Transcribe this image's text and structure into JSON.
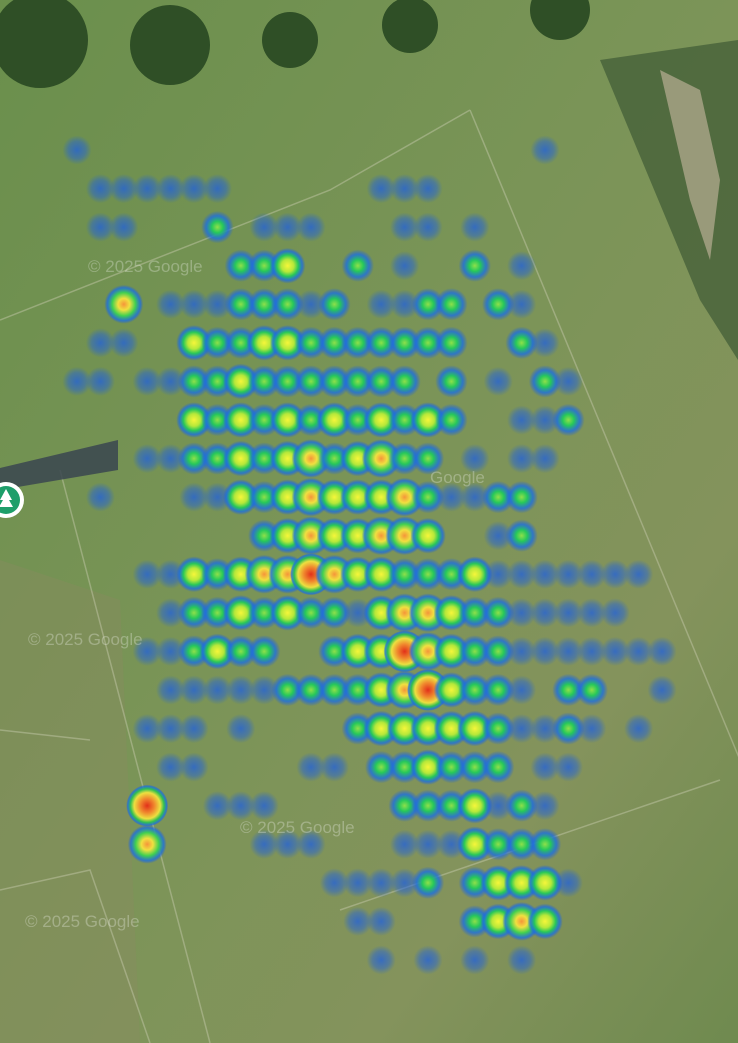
{
  "map": {
    "watermarks": [
      "© 2025 Google",
      "© 2025 Google",
      "© 2025 Google",
      "© 2025 Google",
      "Google"
    ],
    "heatmap": {
      "rows": [
        [
          1,
          0,
          0,
          0,
          0,
          0,
          0,
          0,
          0,
          0,
          0,
          0,
          0,
          0,
          0,
          0,
          0,
          0,
          0,
          0,
          1,
          0,
          0,
          0,
          0,
          0
        ],
        [
          0,
          1,
          1,
          1,
          1,
          1,
          1,
          0,
          0,
          0,
          0,
          0,
          0,
          1,
          1,
          1,
          0,
          0,
          0,
          0,
          0,
          0,
          0,
          0,
          0,
          0
        ],
        [
          0,
          1,
          1,
          0,
          0,
          0,
          2,
          0,
          1,
          1,
          1,
          0,
          0,
          0,
          1,
          1,
          0,
          1,
          0,
          0,
          0,
          0,
          0,
          0,
          0,
          0
        ],
        [
          0,
          0,
          0,
          0,
          0,
          0,
          0,
          2,
          2,
          3,
          0,
          0,
          2,
          0,
          1,
          0,
          0,
          2,
          0,
          1,
          0,
          0,
          0,
          0,
          0,
          0
        ],
        [
          0,
          0,
          4,
          0,
          1,
          1,
          1,
          2,
          2,
          2,
          1,
          2,
          0,
          1,
          1,
          2,
          2,
          0,
          2,
          1,
          0,
          0,
          0,
          0,
          0,
          0
        ],
        [
          0,
          1,
          1,
          0,
          0,
          3,
          2,
          2,
          3,
          3,
          2,
          2,
          2,
          2,
          2,
          2,
          2,
          0,
          0,
          2,
          1,
          0,
          0,
          0,
          0,
          0
        ],
        [
          1,
          1,
          0,
          1,
          1,
          2,
          2,
          3,
          2,
          2,
          2,
          2,
          2,
          2,
          2,
          0,
          2,
          0,
          1,
          0,
          2,
          1,
          0,
          0,
          0,
          0
        ],
        [
          0,
          0,
          0,
          0,
          0,
          3,
          2,
          3,
          2,
          3,
          2,
          3,
          2,
          3,
          2,
          3,
          2,
          0,
          0,
          1,
          1,
          2,
          0,
          0,
          0,
          0
        ],
        [
          0,
          0,
          0,
          1,
          1,
          2,
          2,
          3,
          2,
          3,
          4,
          2,
          3,
          4,
          2,
          2,
          0,
          1,
          0,
          1,
          1,
          0,
          0,
          0,
          0,
          0
        ],
        [
          0,
          1,
          0,
          0,
          0,
          1,
          1,
          3,
          2,
          3,
          4,
          3,
          3,
          3,
          4,
          2,
          1,
          1,
          2,
          2,
          0,
          0,
          0,
          0,
          0,
          0
        ],
        [
          0,
          0,
          0,
          0,
          0,
          0,
          0,
          0,
          2,
          3,
          4,
          3,
          3,
          4,
          4,
          3,
          0,
          0,
          1,
          2,
          0,
          0,
          0,
          0,
          0,
          0
        ],
        [
          0,
          0,
          0,
          1,
          1,
          3,
          2,
          3,
          4,
          4,
          5,
          4,
          3,
          3,
          2,
          2,
          2,
          3,
          1,
          1,
          1,
          1,
          1,
          1,
          1,
          0
        ],
        [
          0,
          0,
          0,
          0,
          1,
          2,
          2,
          3,
          2,
          3,
          2,
          2,
          1,
          3,
          4,
          4,
          3,
          2,
          2,
          1,
          1,
          1,
          1,
          1,
          0,
          0
        ],
        [
          0,
          0,
          0,
          1,
          1,
          2,
          3,
          2,
          2,
          0,
          0,
          2,
          3,
          3,
          5,
          4,
          3,
          2,
          2,
          1,
          1,
          1,
          1,
          1,
          1,
          1
        ],
        [
          0,
          0,
          0,
          0,
          1,
          1,
          1,
          1,
          1,
          2,
          2,
          2,
          2,
          3,
          4,
          5,
          3,
          2,
          2,
          1,
          0,
          2,
          2,
          0,
          0,
          1
        ],
        [
          0,
          0,
          0,
          1,
          1,
          1,
          0,
          1,
          0,
          0,
          0,
          0,
          2,
          3,
          3,
          3,
          3,
          3,
          2,
          1,
          1,
          2,
          1,
          0,
          1,
          0
        ],
        [
          0,
          0,
          0,
          0,
          1,
          1,
          0,
          0,
          0,
          0,
          1,
          1,
          0,
          2,
          2,
          3,
          2,
          2,
          2,
          0,
          1,
          1,
          0,
          0,
          0,
          0
        ],
        [
          0,
          0,
          0,
          5,
          0,
          0,
          1,
          1,
          1,
          0,
          0,
          0,
          0,
          0,
          2,
          2,
          2,
          3,
          1,
          2,
          1,
          0,
          0,
          0,
          0,
          0
        ],
        [
          0,
          0,
          0,
          4,
          0,
          0,
          0,
          0,
          1,
          1,
          1,
          0,
          0,
          0,
          1,
          1,
          1,
          3,
          2,
          2,
          2,
          0,
          0,
          0,
          0,
          0
        ],
        [
          0,
          0,
          0,
          0,
          0,
          0,
          0,
          0,
          0,
          0,
          0,
          1,
          1,
          1,
          1,
          2,
          0,
          2,
          3,
          3,
          3,
          1,
          0,
          0,
          0,
          0
        ],
        [
          0,
          0,
          0,
          0,
          0,
          0,
          0,
          0,
          0,
          0,
          0,
          0,
          1,
          1,
          0,
          0,
          0,
          2,
          3,
          4,
          3,
          0,
          0,
          0,
          0,
          0
        ],
        [
          0,
          0,
          0,
          0,
          0,
          0,
          0,
          0,
          0,
          0,
          0,
          0,
          0,
          1,
          0,
          1,
          0,
          1,
          0,
          1,
          0,
          0,
          0,
          0,
          0,
          0
        ]
      ]
    }
  }
}
